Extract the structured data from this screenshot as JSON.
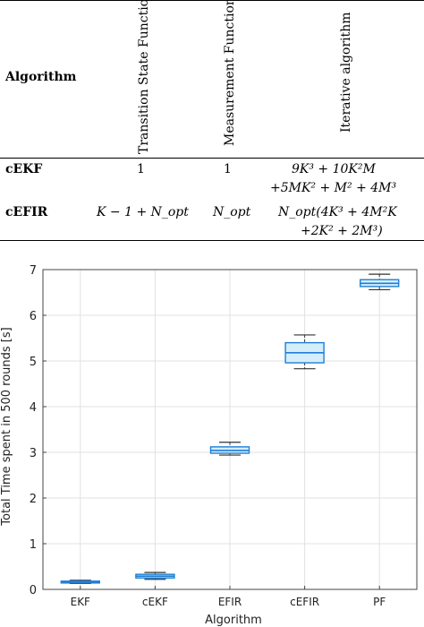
{
  "table": {
    "header": {
      "algorithm": "Algorithm",
      "transition": "Transition State Function",
      "measurement": "Measurement Function",
      "iterative": "Iterative algorithm"
    },
    "rows": [
      {
        "name": "cEKF",
        "transition": "1",
        "measurement": "1",
        "iterative_line1": "9K³ + 10K²M",
        "iterative_line2": "+5MK² + M² + 4M³"
      },
      {
        "name": "cEFIR",
        "transition": "K − 1 + N_opt",
        "measurement": "N_opt",
        "iterative_line1": "N_opt(4K³ + 4M²K",
        "iterative_line2": "+2K² + 2M³)"
      }
    ]
  },
  "chart_data": {
    "type": "box",
    "xlabel": "Algorithm",
    "ylabel": "Total Time spent in 500 rounds  [s]",
    "ylim": [
      0,
      7
    ],
    "yticks": [
      0,
      1,
      2,
      3,
      4,
      5,
      6,
      7
    ],
    "grid": true,
    "categories": [
      "EKF",
      "cEKF",
      "EFIR",
      "cEFIR",
      "PF"
    ],
    "boxes": [
      {
        "min": 0.13,
        "q1": 0.14,
        "median": 0.16,
        "q3": 0.18,
        "max": 0.2
      },
      {
        "min": 0.22,
        "q1": 0.25,
        "median": 0.29,
        "q3": 0.33,
        "max": 0.37
      },
      {
        "min": 2.94,
        "q1": 2.98,
        "median": 3.04,
        "q3": 3.12,
        "max": 3.22
      },
      {
        "min": 4.83,
        "q1": 4.96,
        "median": 5.18,
        "q3": 5.4,
        "max": 5.57
      },
      {
        "min": 6.56,
        "q1": 6.63,
        "median": 6.7,
        "q3": 6.78,
        "max": 6.9
      }
    ],
    "box_color": "#1f7fd6",
    "box_fill": "#d6eefb"
  }
}
